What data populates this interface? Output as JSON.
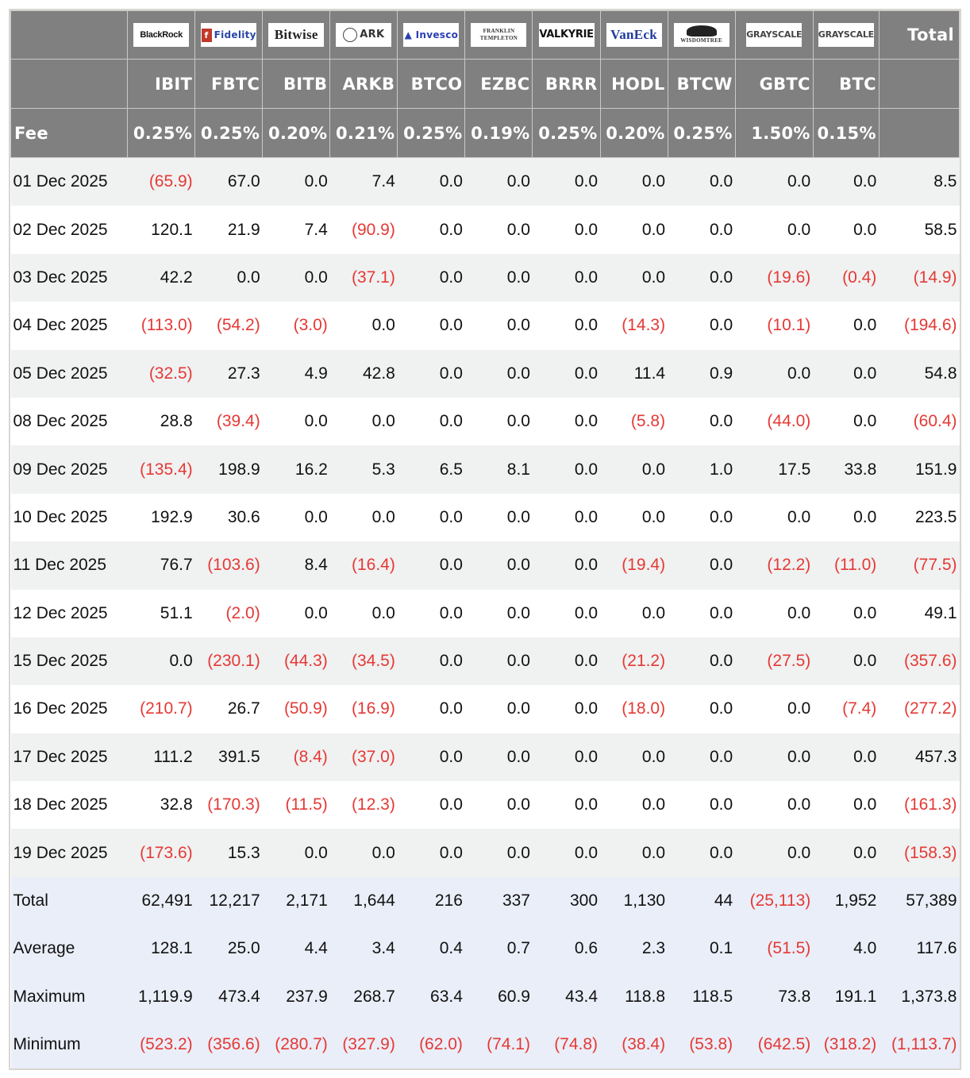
{
  "table": {
    "fee_label": "Fee",
    "total_label": "Total",
    "funds": [
      {
        "issuer": "BlackRock",
        "logo": "blackrock-logo",
        "ticker": "IBIT",
        "fee": "0.25%"
      },
      {
        "issuer": "Fidelity International",
        "logo": "fidelity-logo",
        "ticker": "FBTC",
        "fee": "0.25%"
      },
      {
        "issuer": "Bitwise",
        "logo": "bitwise-logo",
        "ticker": "BITB",
        "fee": "0.20%"
      },
      {
        "issuer": "ARK Invest",
        "logo": "ark-invest-logo",
        "ticker": "ARKB",
        "fee": "0.21%"
      },
      {
        "issuer": "Invesco",
        "logo": "invesco-logo",
        "ticker": "BTCO",
        "fee": "0.25%"
      },
      {
        "issuer": "Franklin Templeton",
        "logo": "franklin-templeton-logo",
        "ticker": "EZBC",
        "fee": "0.19%"
      },
      {
        "issuer": "Valkyrie",
        "logo": "valkyrie-logo",
        "ticker": "BRRR",
        "fee": "0.25%"
      },
      {
        "issuer": "VanEck",
        "logo": "vaneck-logo",
        "ticker": "HODL",
        "fee": "0.20%"
      },
      {
        "issuer": "WisdomTree",
        "logo": "wisdomtree-logo",
        "ticker": "BTCW",
        "fee": "0.25%"
      },
      {
        "issuer": "Grayscale",
        "logo": "grayscale-logo",
        "ticker": "GBTC",
        "fee": "1.50%"
      },
      {
        "issuer": "Grayscale",
        "logo": "grayscale-logo",
        "ticker": "BTC",
        "fee": "0.15%"
      }
    ],
    "rows": [
      {
        "date": "01 Dec 2025",
        "values": [
          "(65.9)",
          "67.0",
          "0.0",
          "7.4",
          "0.0",
          "0.0",
          "0.0",
          "0.0",
          "0.0",
          "0.0",
          "0.0"
        ],
        "total": "8.5"
      },
      {
        "date": "02 Dec 2025",
        "values": [
          "120.1",
          "21.9",
          "7.4",
          "(90.9)",
          "0.0",
          "0.0",
          "0.0",
          "0.0",
          "0.0",
          "0.0",
          "0.0"
        ],
        "total": "58.5"
      },
      {
        "date": "03 Dec 2025",
        "values": [
          "42.2",
          "0.0",
          "0.0",
          "(37.1)",
          "0.0",
          "0.0",
          "0.0",
          "0.0",
          "0.0",
          "(19.6)",
          "(0.4)"
        ],
        "total": "(14.9)"
      },
      {
        "date": "04 Dec 2025",
        "values": [
          "(113.0)",
          "(54.2)",
          "(3.0)",
          "0.0",
          "0.0",
          "0.0",
          "0.0",
          "(14.3)",
          "0.0",
          "(10.1)",
          "0.0"
        ],
        "total": "(194.6)"
      },
      {
        "date": "05 Dec 2025",
        "values": [
          "(32.5)",
          "27.3",
          "4.9",
          "42.8",
          "0.0",
          "0.0",
          "0.0",
          "11.4",
          "0.9",
          "0.0",
          "0.0"
        ],
        "total": "54.8"
      },
      {
        "date": "08 Dec 2025",
        "values": [
          "28.8",
          "(39.4)",
          "0.0",
          "0.0",
          "0.0",
          "0.0",
          "0.0",
          "(5.8)",
          "0.0",
          "(44.0)",
          "0.0"
        ],
        "total": "(60.4)"
      },
      {
        "date": "09 Dec 2025",
        "values": [
          "(135.4)",
          "198.9",
          "16.2",
          "5.3",
          "6.5",
          "8.1",
          "0.0",
          "0.0",
          "1.0",
          "17.5",
          "33.8"
        ],
        "total": "151.9"
      },
      {
        "date": "10 Dec 2025",
        "values": [
          "192.9",
          "30.6",
          "0.0",
          "0.0",
          "0.0",
          "0.0",
          "0.0",
          "0.0",
          "0.0",
          "0.0",
          "0.0"
        ],
        "total": "223.5"
      },
      {
        "date": "11 Dec 2025",
        "values": [
          "76.7",
          "(103.6)",
          "8.4",
          "(16.4)",
          "0.0",
          "0.0",
          "0.0",
          "(19.4)",
          "0.0",
          "(12.2)",
          "(11.0)"
        ],
        "total": "(77.5)"
      },
      {
        "date": "12 Dec 2025",
        "values": [
          "51.1",
          "(2.0)",
          "0.0",
          "0.0",
          "0.0",
          "0.0",
          "0.0",
          "0.0",
          "0.0",
          "0.0",
          "0.0"
        ],
        "total": "49.1"
      },
      {
        "date": "15 Dec 2025",
        "values": [
          "0.0",
          "(230.1)",
          "(44.3)",
          "(34.5)",
          "0.0",
          "0.0",
          "0.0",
          "(21.2)",
          "0.0",
          "(27.5)",
          "0.0"
        ],
        "total": "(357.6)"
      },
      {
        "date": "16 Dec 2025",
        "values": [
          "(210.7)",
          "26.7",
          "(50.9)",
          "(16.9)",
          "0.0",
          "0.0",
          "0.0",
          "(18.0)",
          "0.0",
          "0.0",
          "(7.4)"
        ],
        "total": "(277.2)"
      },
      {
        "date": "17 Dec 2025",
        "values": [
          "111.2",
          "391.5",
          "(8.4)",
          "(37.0)",
          "0.0",
          "0.0",
          "0.0",
          "0.0",
          "0.0",
          "0.0",
          "0.0"
        ],
        "total": "457.3"
      },
      {
        "date": "18 Dec 2025",
        "values": [
          "32.8",
          "(170.3)",
          "(11.5)",
          "(12.3)",
          "0.0",
          "0.0",
          "0.0",
          "0.0",
          "0.0",
          "0.0",
          "0.0"
        ],
        "total": "(161.3)"
      },
      {
        "date": "19 Dec 2025",
        "values": [
          "(173.6)",
          "15.3",
          "0.0",
          "0.0",
          "0.0",
          "0.0",
          "0.0",
          "0.0",
          "0.0",
          "0.0",
          "0.0"
        ],
        "total": "(158.3)"
      }
    ],
    "summary": [
      {
        "label": "Total",
        "values": [
          "62,491",
          "12,217",
          "2,171",
          "1,644",
          "216",
          "337",
          "300",
          "1,130",
          "44",
          "(25,113)",
          "1,952"
        ],
        "total": "57,389"
      },
      {
        "label": "Average",
        "values": [
          "128.1",
          "25.0",
          "4.4",
          "3.4",
          "0.4",
          "0.7",
          "0.6",
          "2.3",
          "0.1",
          "(51.5)",
          "4.0"
        ],
        "total": "117.6"
      },
      {
        "label": "Maximum",
        "values": [
          "1,119.9",
          "473.4",
          "237.9",
          "268.7",
          "63.4",
          "60.9",
          "43.4",
          "118.8",
          "118.5",
          "73.8",
          "191.1"
        ],
        "total": "1,373.8"
      },
      {
        "label": "Minimum",
        "values": [
          "(523.2)",
          "(356.6)",
          "(280.7)",
          "(327.9)",
          "(62.0)",
          "(74.1)",
          "(74.8)",
          "(38.4)",
          "(53.8)",
          "(642.5)",
          "(318.2)"
        ],
        "total": "(1,113.7)"
      }
    ]
  },
  "colors": {
    "header_bg": "#808080",
    "negative": "#e53935",
    "row_alt": "#f0f1f1",
    "summary_bg": "#eaeef8"
  }
}
